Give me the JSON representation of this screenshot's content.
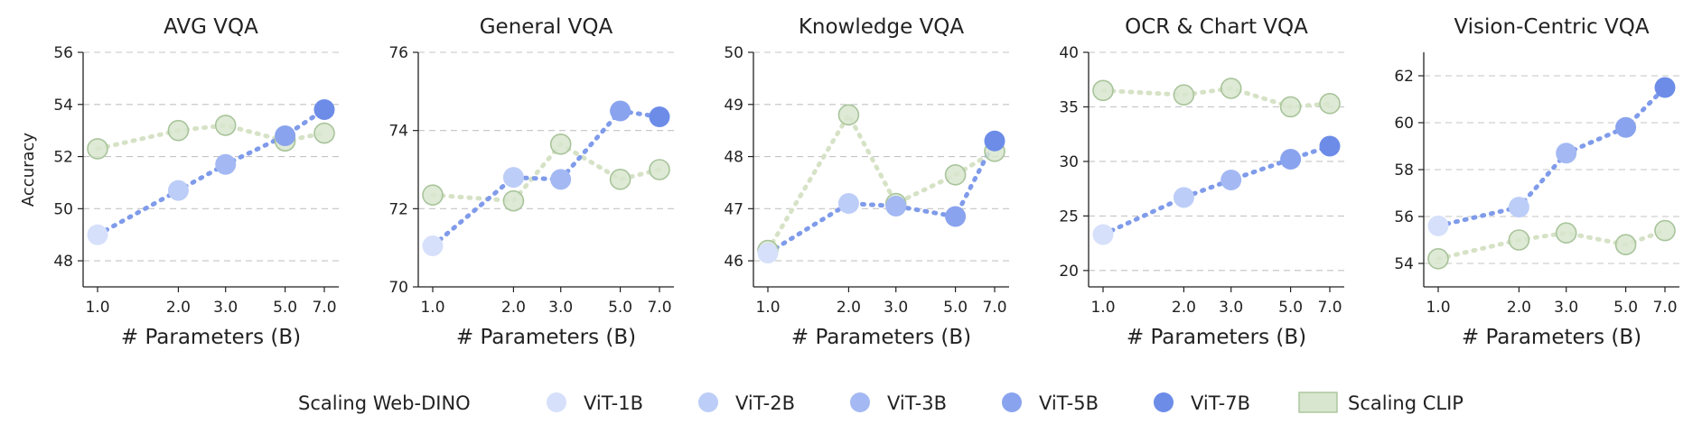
{
  "chart_data": {
    "type": "scatter",
    "y_axis_label": "Accuracy",
    "colors": {
      "vit_1b": "#d6e0fa",
      "vit_2b": "#bccdf7",
      "vit_3b": "#a4b9f3",
      "vit_5b": "#8aa3ee",
      "vit_7b": "#6c8ce8",
      "dino_line": "#7f9bea",
      "clip_fill": "#d8e6cf",
      "clip_edge": "#a8c49a",
      "clip_line": "#d6e2c6",
      "grid": "#c4c4c4",
      "axis": "#222222"
    },
    "legend": {
      "web_dino_label": "Scaling Web-DINO",
      "entries": [
        {
          "label": "ViT-1B",
          "color_key": "vit_1b"
        },
        {
          "label": "ViT-2B",
          "color_key": "vit_2b"
        },
        {
          "label": "ViT-3B",
          "color_key": "vit_3b"
        },
        {
          "label": "ViT-5B",
          "color_key": "vit_5b"
        },
        {
          "label": "ViT-7B",
          "color_key": "vit_7b"
        }
      ],
      "clip_label": "Scaling CLIP"
    },
    "panels": [
      {
        "title": "AVG VQA",
        "xlabel": "# Parameters (B)",
        "x_ticks": [
          "1.0",
          "2.0",
          "3.0",
          "5.0",
          "7.0"
        ],
        "x_values": [
          1,
          2,
          3,
          5,
          7
        ],
        "ylim": [
          47,
          56
        ],
        "y_ticks": [
          48,
          50,
          52,
          54,
          56
        ],
        "web_dino": [
          49.0,
          50.7,
          51.7,
          52.8,
          53.8
        ],
        "clip": [
          52.3,
          53.0,
          53.2,
          52.6,
          52.9
        ]
      },
      {
        "title": "General VQA",
        "xlabel": "# Parameters (B)",
        "x_ticks": [
          "1.0",
          "2.0",
          "3.0",
          "5.0",
          "7.0"
        ],
        "x_values": [
          1,
          2,
          3,
          5,
          7
        ],
        "ylim": [
          70,
          76
        ],
        "y_ticks": [
          70,
          72,
          74,
          76
        ],
        "web_dino": [
          71.05,
          72.8,
          72.75,
          74.5,
          74.35
        ],
        "clip": [
          72.35,
          72.2,
          73.65,
          72.75,
          73.0
        ]
      },
      {
        "title": "Knowledge VQA",
        "xlabel": "# Parameters (B)",
        "x_ticks": [
          "1.0",
          "2.0",
          "3.0",
          "5.0",
          "7.0"
        ],
        "x_values": [
          1,
          2,
          3,
          5,
          7
        ],
        "ylim": [
          45.5,
          50
        ],
        "y_ticks": [
          46,
          47,
          48,
          49,
          50
        ],
        "web_dino": [
          46.15,
          47.1,
          47.05,
          46.85,
          48.3
        ],
        "clip": [
          46.2,
          48.8,
          47.1,
          47.65,
          48.1
        ]
      },
      {
        "title": "OCR & Chart VQA",
        "xlabel": "# Parameters (B)",
        "x_ticks": [
          "1.0",
          "2.0",
          "3.0",
          "5.0",
          "7.0"
        ],
        "x_values": [
          1,
          2,
          3,
          5,
          7
        ],
        "ylim": [
          18.5,
          40
        ],
        "y_ticks": [
          20,
          25,
          30,
          35,
          40
        ],
        "web_dino": [
          23.3,
          26.7,
          28.3,
          30.2,
          31.4
        ],
        "clip": [
          36.5,
          36.1,
          36.7,
          35.0,
          35.3
        ]
      },
      {
        "title": "Vision-Centric VQA",
        "xlabel": "# Parameters (B)",
        "x_ticks": [
          "1.0",
          "2.0",
          "3.0",
          "5.0",
          "7.0"
        ],
        "x_values": [
          1,
          2,
          3,
          5,
          7
        ],
        "ylim": [
          53,
          63
        ],
        "y_ticks": [
          54,
          56,
          58,
          60,
          62
        ],
        "web_dino": [
          55.6,
          56.4,
          58.7,
          59.8,
          61.5
        ],
        "clip": [
          54.2,
          55.0,
          55.3,
          54.8,
          55.4
        ]
      }
    ]
  }
}
